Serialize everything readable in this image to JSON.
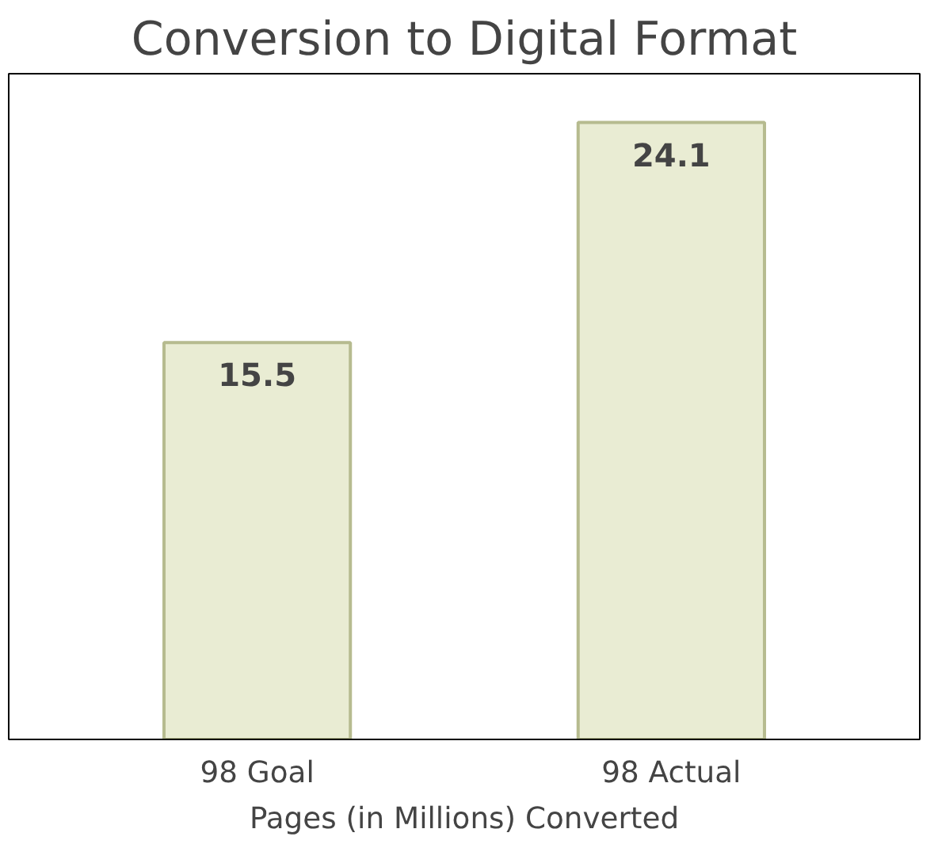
{
  "chart_data": {
    "type": "bar",
    "title": "Conversion to Digital Format",
    "xlabel": "Pages (in Millions) Converted",
    "categories": [
      "98 Goal",
      "98 Actual"
    ],
    "values": [
      15.5,
      24.1
    ],
    "color": "#e9ecd3",
    "ylim": [
      0,
      26
    ],
    "data_labels": true,
    "grid": false
  }
}
